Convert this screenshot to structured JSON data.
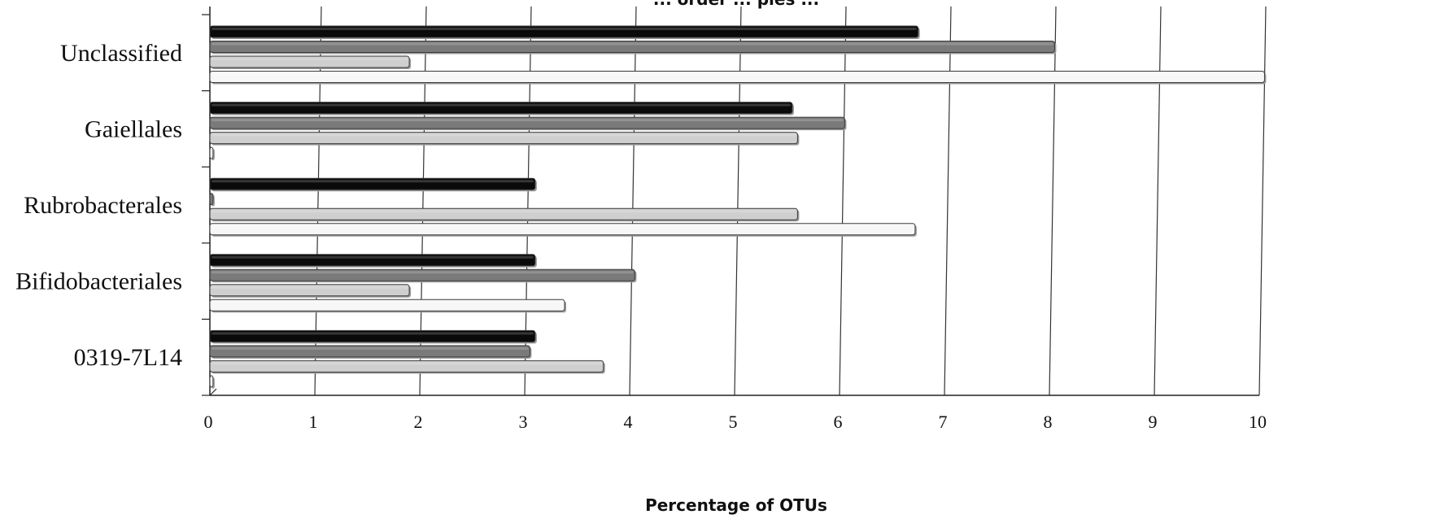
{
  "chart_data": {
    "type": "bar",
    "orientation": "horizontal",
    "title": "... order ... ples ...",
    "xlabel": "Percentage of  OTUs",
    "ylabel": "",
    "xlim": [
      0,
      10
    ],
    "x_ticks": [
      "0",
      "1",
      "2",
      "3",
      "4",
      "5",
      "6",
      "7",
      "8",
      "9",
      "10"
    ],
    "categories": [
      "Unclassified",
      "Gaiellales",
      "Rubrobacterales",
      "Bifidobacteriales",
      "0319-7L14"
    ],
    "grid": true,
    "legend": "none",
    "series": [
      {
        "color": "#0a0a0a",
        "values": [
          6.75,
          5.55,
          3.1,
          3.1,
          3.1
        ]
      },
      {
        "color": "#7a7a7a",
        "values": [
          8.05,
          6.05,
          0.03,
          4.05,
          3.05
        ]
      },
      {
        "color": "#cfcfcf",
        "values": [
          1.9,
          5.6,
          5.6,
          1.9,
          3.75
        ]
      },
      {
        "color": "#f7f7f7",
        "values": [
          10.05,
          0.03,
          6.72,
          3.38,
          0.03
        ]
      }
    ]
  }
}
